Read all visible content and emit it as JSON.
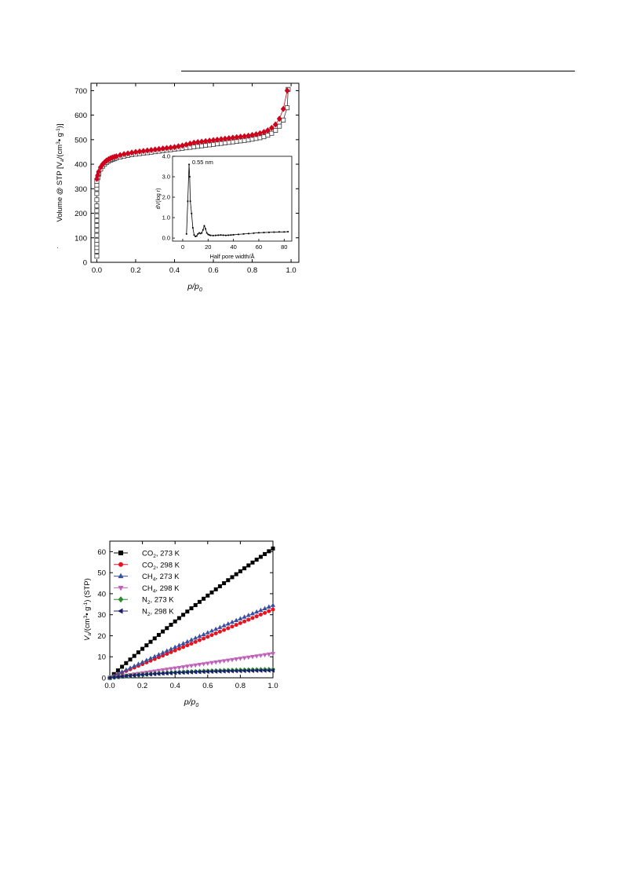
{
  "page": {
    "bullet": "·"
  },
  "chart_data": [
    {
      "type": "scatter",
      "title": "",
      "xlabel_main": "p/p",
      "xlabel_sub": "0",
      "ylabel": "Volume @ STP [V",
      "ylabel_sub": "a",
      "ylabel_tail": "/(cm",
      "ylabel_sup": "3",
      "ylabel_tail2": "• g",
      "ylabel_sup2": "-1",
      "ylabel_tail3": ")]",
      "xlim": [
        -0.03,
        1.04
      ],
      "ylim": [
        0,
        730
      ],
      "xticks": [
        0.0,
        0.2,
        0.4,
        0.6,
        0.8,
        1.0
      ],
      "xtick_labels": [
        "0.0",
        "0.2",
        "0.4",
        "0.6",
        "0.8",
        "1.0"
      ],
      "yticks": [
        0,
        100,
        200,
        300,
        400,
        500,
        600,
        700
      ],
      "ytick_labels": [
        "0",
        "100",
        "200",
        "300",
        "400",
        "500",
        "600",
        "700"
      ],
      "grid": false,
      "series": [
        {
          "marker": "square-open",
          "color": "#333333",
          "x": [
            0.0,
            0.0,
            0.0,
            0.0,
            0.0,
            0.0,
            0.0,
            0.0,
            0.0,
            0.0,
            0.0,
            0.0,
            0.0,
            0.0,
            0.0,
            0.0,
            0.0,
            0.005,
            0.01,
            0.02,
            0.03,
            0.04,
            0.05,
            0.06,
            0.07,
            0.08,
            0.09,
            0.1,
            0.12,
            0.14,
            0.16,
            0.18,
            0.2,
            0.22,
            0.24,
            0.26,
            0.28,
            0.3,
            0.32,
            0.34,
            0.36,
            0.38,
            0.4,
            0.42,
            0.44,
            0.46,
            0.48,
            0.5,
            0.52,
            0.54,
            0.56,
            0.58,
            0.6,
            0.62,
            0.64,
            0.66,
            0.68,
            0.7,
            0.72,
            0.74,
            0.76,
            0.78,
            0.8,
            0.82,
            0.84,
            0.86,
            0.88,
            0.9,
            0.92,
            0.94,
            0.96,
            0.98,
            0.985
          ],
          "y": [
            25,
            45,
            60,
            75,
            90,
            110,
            130,
            150,
            170,
            190,
            210,
            230,
            255,
            280,
            300,
            315,
            330,
            345,
            360,
            380,
            392,
            400,
            407,
            412,
            416,
            419,
            422,
            425,
            429,
            433,
            436,
            439,
            441,
            443,
            445,
            447,
            449,
            451,
            453,
            455,
            457,
            459,
            461,
            463,
            465,
            467,
            469,
            471,
            473,
            475,
            477,
            479,
            481,
            483,
            485,
            487,
            489,
            491,
            493,
            495,
            497,
            499,
            502,
            505,
            508,
            512,
            518,
            526,
            538,
            555,
            580,
            630,
            705
          ]
        },
        {
          "marker": "diamond-filled",
          "color": "#d0021b",
          "x": [
            0.0,
            0.005,
            0.01,
            0.02,
            0.03,
            0.04,
            0.05,
            0.06,
            0.07,
            0.08,
            0.09,
            0.1,
            0.12,
            0.14,
            0.16,
            0.18,
            0.2,
            0.22,
            0.24,
            0.26,
            0.28,
            0.3,
            0.32,
            0.34,
            0.36,
            0.38,
            0.4,
            0.42,
            0.44,
            0.46,
            0.48,
            0.5,
            0.52,
            0.54,
            0.56,
            0.58,
            0.6,
            0.62,
            0.64,
            0.66,
            0.68,
            0.7,
            0.72,
            0.74,
            0.76,
            0.78,
            0.8,
            0.82,
            0.84,
            0.86,
            0.88,
            0.9,
            0.92,
            0.94,
            0.96,
            0.98
          ],
          "y": [
            340,
            355,
            370,
            388,
            400,
            408,
            415,
            420,
            424,
            427,
            430,
            432,
            437,
            441,
            444,
            447,
            450,
            452,
            454,
            456,
            458,
            460,
            462,
            464,
            466,
            468,
            470,
            473,
            476,
            480,
            484,
            488,
            490,
            492,
            494,
            496,
            498,
            500,
            502,
            504,
            506,
            508,
            510,
            512,
            514,
            516,
            519,
            522,
            526,
            531,
            538,
            548,
            562,
            585,
            625,
            700
          ]
        }
      ],
      "inset": {
        "type": "line",
        "xlabel": "Half pore width/Å",
        "ylabel": "dV(log r)",
        "xlim": [
          -8,
          86
        ],
        "ylim": [
          -0.15,
          4.0
        ],
        "xticks": [
          0,
          20,
          40,
          60,
          80
        ],
        "xtick_labels": [
          "0",
          "20",
          "40",
          "60",
          "80"
        ],
        "yticks": [
          0.0,
          1.0,
          2.0,
          3.0,
          4.0
        ],
        "ytick_labels": [
          "0.0",
          "1.0",
          "2.0",
          "3.0",
          "4.0"
        ],
        "annotation": "0.55 nm",
        "x": [
          3,
          4,
          5,
          5.5,
          6,
          7,
          8,
          9,
          10,
          11,
          12,
          13,
          14,
          15,
          16,
          17,
          18,
          19,
          20,
          21,
          22,
          24,
          26,
          28,
          30,
          32,
          34,
          36,
          38,
          40,
          44,
          48,
          52,
          56,
          60,
          64,
          68,
          72,
          76,
          80,
          83
        ],
        "y": [
          0.2,
          1.8,
          3.6,
          3.0,
          1.8,
          1.2,
          0.5,
          0.15,
          0.08,
          0.1,
          0.2,
          0.25,
          0.22,
          0.25,
          0.4,
          0.6,
          0.45,
          0.25,
          0.18,
          0.15,
          0.13,
          0.12,
          0.13,
          0.14,
          0.15,
          0.14,
          0.13,
          0.14,
          0.15,
          0.16,
          0.18,
          0.2,
          0.22,
          0.24,
          0.26,
          0.27,
          0.28,
          0.29,
          0.3,
          0.3,
          0.31
        ]
      }
    },
    {
      "type": "line",
      "title": "",
      "xlabel_main": "p/p",
      "xlabel_sub": "0",
      "ylabel": "V",
      "ylabel_sub": "a",
      "ylabel_tail": "/(cm",
      "ylabel_sup": "3",
      "ylabel_tail2": "• g",
      "ylabel_sup2": "-1",
      "ylabel_tail3": ") (STP)",
      "xlim": [
        0.0,
        1.0
      ],
      "ylim": [
        0,
        65
      ],
      "xticks": [
        0.0,
        0.2,
        0.4,
        0.6,
        0.8,
        1.0
      ],
      "xtick_labels": [
        "0.0",
        "0.2",
        "0.4",
        "0.6",
        "0.8",
        "1.0"
      ],
      "yticks": [
        0,
        10,
        20,
        30,
        40,
        50,
        60
      ],
      "ytick_labels": [
        "0",
        "10",
        "20",
        "30",
        "40",
        "50",
        "60"
      ],
      "legend_position": "top-left",
      "series": [
        {
          "name": "CO",
          "name_sub": "2",
          "name_tail": ", 273 K",
          "color": "#000000",
          "marker": "square",
          "ymax": 61.5,
          "curv": 0.05
        },
        {
          "name": "CO",
          "name_sub": "2",
          "name_tail": ", 298 K",
          "color": "#e8131f",
          "marker": "circle",
          "ymax": 32.5,
          "curv": 0.0
        },
        {
          "name": "CH",
          "name_sub": "4",
          "name_tail": ", 273 K",
          "color": "#3a4fa0",
          "marker": "triangle-up",
          "ymax": 34.5,
          "curv": 0.03
        },
        {
          "name": "CH",
          "name_sub": "4",
          "name_tail": ", 298 K",
          "color": "#c060b8",
          "marker": "triangle-down",
          "ymax": 11.5,
          "curv": 0.0
        },
        {
          "name": "N",
          "name_sub": "2",
          "name_tail": ", 273 K",
          "color": "#2e8b2e",
          "marker": "diamond",
          "ymax": 4.0,
          "curv": 0.5
        },
        {
          "name": "N",
          "name_sub": "2",
          "name_tail": ", 298 K",
          "color": "#1a1f6e",
          "marker": "triangle-left",
          "ymax": 3.5,
          "curv": 0.6
        }
      ]
    }
  ]
}
